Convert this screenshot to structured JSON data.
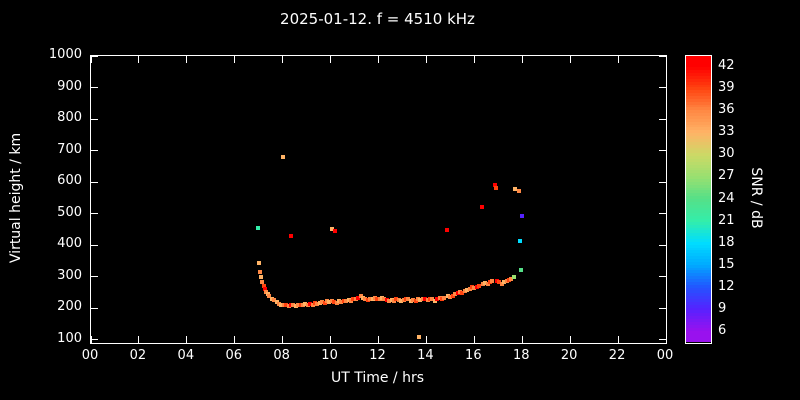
{
  "title": "2025-01-12. f = 4510 kHz",
  "colors": {
    "background": "#000000",
    "foreground": "#ffffff"
  },
  "chart_data": {
    "type": "scatter",
    "title": "2025-01-12. f = 4510 kHz",
    "xlabel": "UT Time / hrs",
    "ylabel": "Virtual height / km",
    "colorbar_label": "SNR / dB",
    "xlim": [
      0,
      24
    ],
    "ylim": [
      90,
      1000
    ],
    "grid": false,
    "x_ticks": {
      "values": [
        0,
        2,
        4,
        6,
        8,
        10,
        12,
        14,
        16,
        18,
        20,
        22,
        24
      ],
      "labels": [
        "00",
        "02",
        "04",
        "06",
        "08",
        "10",
        "12",
        "14",
        "16",
        "18",
        "20",
        "22",
        "00"
      ]
    },
    "y_ticks": [
      100,
      200,
      300,
      400,
      500,
      600,
      700,
      800,
      900,
      1000
    ],
    "colorbar": {
      "min": 4.5,
      "max": 43.5,
      "ticks": [
        42,
        39,
        36,
        33,
        30,
        27,
        24,
        21,
        18,
        15,
        12,
        9,
        6
      ],
      "anchors": [
        {
          "v": 6,
          "color": "#9911ee"
        },
        {
          "v": 9,
          "color": "#5522ff"
        },
        {
          "v": 12,
          "color": "#2255ff"
        },
        {
          "v": 15,
          "color": "#00aaff"
        },
        {
          "v": 18,
          "color": "#00ddff"
        },
        {
          "v": 21,
          "color": "#33eeaa"
        },
        {
          "v": 24,
          "color": "#55e088"
        },
        {
          "v": 27,
          "color": "#99e070"
        },
        {
          "v": 30,
          "color": "#ccd966"
        },
        {
          "v": 33,
          "color": "#ffb366"
        },
        {
          "v": 36,
          "color": "#ff8844"
        },
        {
          "v": 39,
          "color": "#ff4411"
        },
        {
          "v": 42,
          "color": "#ff0000"
        }
      ]
    },
    "points": [
      [
        6.97,
        455,
        21
      ],
      [
        7.02,
        345,
        33
      ],
      [
        7.05,
        315,
        36
      ],
      [
        7.1,
        300,
        33
      ],
      [
        7.15,
        285,
        36
      ],
      [
        7.2,
        272,
        39
      ],
      [
        7.25,
        262,
        42
      ],
      [
        7.3,
        252,
        36
      ],
      [
        7.38,
        245,
        33
      ],
      [
        7.45,
        238,
        36
      ],
      [
        7.55,
        230,
        33
      ],
      [
        7.65,
        225,
        36
      ],
      [
        7.75,
        220,
        33
      ],
      [
        7.85,
        215,
        36
      ],
      [
        7.95,
        212,
        33
      ],
      [
        8.0,
        680,
        33
      ],
      [
        8.05,
        210,
        36
      ],
      [
        8.15,
        212,
        39
      ],
      [
        8.25,
        208,
        36
      ],
      [
        8.35,
        430,
        42
      ],
      [
        8.35,
        210,
        42
      ],
      [
        8.45,
        212,
        36
      ],
      [
        8.55,
        208,
        33
      ],
      [
        8.65,
        210,
        36
      ],
      [
        8.75,
        212,
        39
      ],
      [
        8.85,
        210,
        36
      ],
      [
        8.95,
        214,
        33
      ],
      [
        9.05,
        212,
        36
      ],
      [
        9.15,
        215,
        42
      ],
      [
        9.25,
        212,
        36
      ],
      [
        9.35,
        216,
        39
      ],
      [
        9.45,
        214,
        36
      ],
      [
        9.55,
        218,
        33
      ],
      [
        9.65,
        220,
        36
      ],
      [
        9.75,
        218,
        39
      ],
      [
        9.85,
        222,
        36
      ],
      [
        9.95,
        220,
        33
      ],
      [
        10.05,
        450,
        33
      ],
      [
        10.2,
        445,
        42
      ],
      [
        10.05,
        224,
        36
      ],
      [
        10.15,
        220,
        39
      ],
      [
        10.25,
        218,
        36
      ],
      [
        10.35,
        222,
        33
      ],
      [
        10.45,
        220,
        36
      ],
      [
        10.55,
        224,
        39
      ],
      [
        10.65,
        222,
        36
      ],
      [
        10.75,
        226,
        33
      ],
      [
        10.85,
        224,
        36
      ],
      [
        10.95,
        228,
        39
      ],
      [
        11.05,
        230,
        36
      ],
      [
        11.15,
        234,
        42
      ],
      [
        11.25,
        238,
        36
      ],
      [
        11.35,
        232,
        33
      ],
      [
        11.45,
        228,
        36
      ],
      [
        11.55,
        226,
        39
      ],
      [
        11.65,
        230,
        36
      ],
      [
        11.75,
        228,
        33
      ],
      [
        11.85,
        232,
        36
      ],
      [
        11.95,
        230,
        39
      ],
      [
        12.05,
        228,
        36
      ],
      [
        12.15,
        232,
        33
      ],
      [
        12.25,
        230,
        36
      ],
      [
        12.35,
        226,
        42
      ],
      [
        12.45,
        222,
        36
      ],
      [
        12.55,
        226,
        33
      ],
      [
        12.65,
        224,
        36
      ],
      [
        12.75,
        228,
        39
      ],
      [
        12.85,
        226,
        36
      ],
      [
        12.95,
        222,
        33
      ],
      [
        13.05,
        226,
        36
      ],
      [
        13.15,
        230,
        39
      ],
      [
        13.25,
        228,
        36
      ],
      [
        13.35,
        224,
        33
      ],
      [
        13.45,
        226,
        36
      ],
      [
        13.55,
        224,
        39
      ],
      [
        13.65,
        228,
        36
      ],
      [
        13.7,
        110,
        33
      ],
      [
        13.75,
        226,
        33
      ],
      [
        13.85,
        230,
        36
      ],
      [
        13.95,
        228,
        42
      ],
      [
        14.05,
        226,
        36
      ],
      [
        14.15,
        230,
        39
      ],
      [
        14.25,
        228,
        36
      ],
      [
        14.35,
        224,
        33
      ],
      [
        14.45,
        228,
        42
      ],
      [
        14.55,
        232,
        36
      ],
      [
        14.65,
        230,
        39
      ],
      [
        14.75,
        234,
        36
      ],
      [
        14.85,
        448,
        42
      ],
      [
        14.9,
        238,
        33
      ],
      [
        15.0,
        236,
        36
      ],
      [
        15.1,
        240,
        39
      ],
      [
        15.2,
        244,
        36
      ],
      [
        15.3,
        248,
        42
      ],
      [
        15.4,
        252,
        36
      ],
      [
        15.5,
        250,
        39
      ],
      [
        15.6,
        255,
        36
      ],
      [
        15.7,
        258,
        33
      ],
      [
        15.8,
        262,
        36
      ],
      [
        15.9,
        266,
        39
      ],
      [
        16.0,
        264,
        36
      ],
      [
        16.1,
        268,
        42
      ],
      [
        16.2,
        272,
        39
      ],
      [
        16.3,
        520,
        42
      ],
      [
        16.35,
        276,
        36
      ],
      [
        16.45,
        280,
        33
      ],
      [
        16.55,
        278,
        36
      ],
      [
        16.65,
        284,
        39
      ],
      [
        16.75,
        288,
        36
      ],
      [
        16.85,
        592,
        42
      ],
      [
        16.9,
        582,
        39
      ],
      [
        16.95,
        286,
        42
      ],
      [
        17.05,
        282,
        39
      ],
      [
        17.15,
        278,
        36
      ],
      [
        17.25,
        282,
        33
      ],
      [
        17.35,
        286,
        36
      ],
      [
        17.45,
        290,
        39
      ],
      [
        17.55,
        294,
        36
      ],
      [
        17.65,
        298,
        27
      ],
      [
        17.7,
        578,
        33
      ],
      [
        17.85,
        572,
        36
      ],
      [
        17.9,
        415,
        18
      ],
      [
        17.95,
        320,
        24
      ],
      [
        18.0,
        492,
        9
      ]
    ]
  }
}
